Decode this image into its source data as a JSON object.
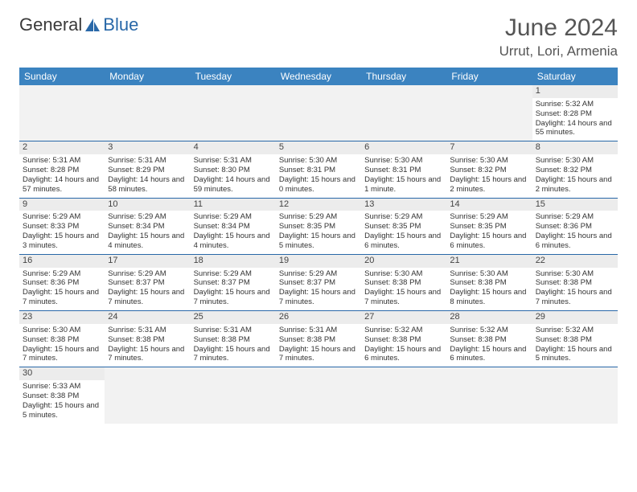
{
  "logo": {
    "text_general": "General",
    "text_blue": "Blue"
  },
  "title": "June 2024",
  "location": "Urrut, Lori, Armenia",
  "colors": {
    "header_bg": "#3b83c0",
    "header_text": "#ffffff",
    "daynum_bg": "#ececec",
    "border": "#2968a8",
    "empty_bg": "#f2f2f2",
    "text": "#333333",
    "title_color": "#555555"
  },
  "days_of_week": [
    "Sunday",
    "Monday",
    "Tuesday",
    "Wednesday",
    "Thursday",
    "Friday",
    "Saturday"
  ],
  "weeks": [
    [
      null,
      null,
      null,
      null,
      null,
      null,
      {
        "n": "1",
        "sunrise": "5:32 AM",
        "sunset": "8:28 PM",
        "daylight": "14 hours and 55 minutes."
      }
    ],
    [
      {
        "n": "2",
        "sunrise": "5:31 AM",
        "sunset": "8:28 PM",
        "daylight": "14 hours and 57 minutes."
      },
      {
        "n": "3",
        "sunrise": "5:31 AM",
        "sunset": "8:29 PM",
        "daylight": "14 hours and 58 minutes."
      },
      {
        "n": "4",
        "sunrise": "5:31 AM",
        "sunset": "8:30 PM",
        "daylight": "14 hours and 59 minutes."
      },
      {
        "n": "5",
        "sunrise": "5:30 AM",
        "sunset": "8:31 PM",
        "daylight": "15 hours and 0 minutes."
      },
      {
        "n": "6",
        "sunrise": "5:30 AM",
        "sunset": "8:31 PM",
        "daylight": "15 hours and 1 minute."
      },
      {
        "n": "7",
        "sunrise": "5:30 AM",
        "sunset": "8:32 PM",
        "daylight": "15 hours and 2 minutes."
      },
      {
        "n": "8",
        "sunrise": "5:30 AM",
        "sunset": "8:32 PM",
        "daylight": "15 hours and 2 minutes."
      }
    ],
    [
      {
        "n": "9",
        "sunrise": "5:29 AM",
        "sunset": "8:33 PM",
        "daylight": "15 hours and 3 minutes."
      },
      {
        "n": "10",
        "sunrise": "5:29 AM",
        "sunset": "8:34 PM",
        "daylight": "15 hours and 4 minutes."
      },
      {
        "n": "11",
        "sunrise": "5:29 AM",
        "sunset": "8:34 PM",
        "daylight": "15 hours and 4 minutes."
      },
      {
        "n": "12",
        "sunrise": "5:29 AM",
        "sunset": "8:35 PM",
        "daylight": "15 hours and 5 minutes."
      },
      {
        "n": "13",
        "sunrise": "5:29 AM",
        "sunset": "8:35 PM",
        "daylight": "15 hours and 6 minutes."
      },
      {
        "n": "14",
        "sunrise": "5:29 AM",
        "sunset": "8:35 PM",
        "daylight": "15 hours and 6 minutes."
      },
      {
        "n": "15",
        "sunrise": "5:29 AM",
        "sunset": "8:36 PM",
        "daylight": "15 hours and 6 minutes."
      }
    ],
    [
      {
        "n": "16",
        "sunrise": "5:29 AM",
        "sunset": "8:36 PM",
        "daylight": "15 hours and 7 minutes."
      },
      {
        "n": "17",
        "sunrise": "5:29 AM",
        "sunset": "8:37 PM",
        "daylight": "15 hours and 7 minutes."
      },
      {
        "n": "18",
        "sunrise": "5:29 AM",
        "sunset": "8:37 PM",
        "daylight": "15 hours and 7 minutes."
      },
      {
        "n": "19",
        "sunrise": "5:29 AM",
        "sunset": "8:37 PM",
        "daylight": "15 hours and 7 minutes."
      },
      {
        "n": "20",
        "sunrise": "5:30 AM",
        "sunset": "8:38 PM",
        "daylight": "15 hours and 7 minutes."
      },
      {
        "n": "21",
        "sunrise": "5:30 AM",
        "sunset": "8:38 PM",
        "daylight": "15 hours and 8 minutes."
      },
      {
        "n": "22",
        "sunrise": "5:30 AM",
        "sunset": "8:38 PM",
        "daylight": "15 hours and 7 minutes."
      }
    ],
    [
      {
        "n": "23",
        "sunrise": "5:30 AM",
        "sunset": "8:38 PM",
        "daylight": "15 hours and 7 minutes."
      },
      {
        "n": "24",
        "sunrise": "5:31 AM",
        "sunset": "8:38 PM",
        "daylight": "15 hours and 7 minutes."
      },
      {
        "n": "25",
        "sunrise": "5:31 AM",
        "sunset": "8:38 PM",
        "daylight": "15 hours and 7 minutes."
      },
      {
        "n": "26",
        "sunrise": "5:31 AM",
        "sunset": "8:38 PM",
        "daylight": "15 hours and 7 minutes."
      },
      {
        "n": "27",
        "sunrise": "5:32 AM",
        "sunset": "8:38 PM",
        "daylight": "15 hours and 6 minutes."
      },
      {
        "n": "28",
        "sunrise": "5:32 AM",
        "sunset": "8:38 PM",
        "daylight": "15 hours and 6 minutes."
      },
      {
        "n": "29",
        "sunrise": "5:32 AM",
        "sunset": "8:38 PM",
        "daylight": "15 hours and 5 minutes."
      }
    ],
    [
      {
        "n": "30",
        "sunrise": "5:33 AM",
        "sunset": "8:38 PM",
        "daylight": "15 hours and 5 minutes."
      },
      null,
      null,
      null,
      null,
      null,
      null
    ]
  ],
  "labels": {
    "sunrise_prefix": "Sunrise: ",
    "sunset_prefix": "Sunset: ",
    "daylight_prefix": "Daylight: "
  }
}
